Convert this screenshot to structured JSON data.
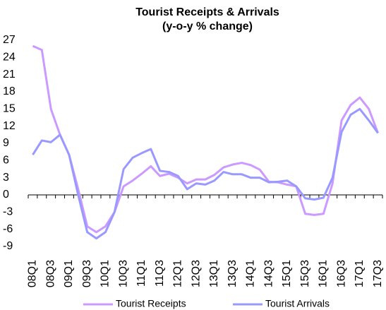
{
  "chart_data": {
    "type": "line",
    "title": "Tourist Receipts & Arrivals",
    "subtitle": "(y-o-y % change)",
    "categories": [
      "08Q1",
      null,
      "08Q3",
      null,
      "09Q1",
      null,
      "09Q3",
      null,
      "10Q1",
      null,
      "10Q3",
      null,
      "11Q1",
      null,
      "11Q3",
      null,
      "12Q1",
      null,
      "12Q3",
      null,
      "13Q1",
      null,
      "13Q3",
      null,
      "14Q1",
      null,
      "14Q3",
      null,
      "15Q1",
      null,
      "15Q3",
      null,
      "16Q1",
      null,
      "16Q3",
      null,
      "17Q1",
      null,
      "17Q3"
    ],
    "series": [
      {
        "name": "Tourist Receipts",
        "color": "#cc99ff",
        "values": [
          26,
          25.3,
          15,
          10.5,
          7,
          1,
          -5.5,
          -6.5,
          -5.5,
          -3,
          1.5,
          2.5,
          3.7,
          5,
          3.3,
          3.7,
          3,
          2,
          2.7,
          2.7,
          3.5,
          4.8,
          5.3,
          5.6,
          5.2,
          4.4,
          2.3,
          2.2,
          1.8,
          1.5,
          -3.3,
          -3.5,
          -3.3,
          2,
          13,
          15.7,
          17,
          15,
          10.8
        ]
      },
      {
        "name": "Tourist Arrivals",
        "color": "#9999ff",
        "values": [
          7,
          9.5,
          9.2,
          10.5,
          7,
          0,
          -6.5,
          -7.6,
          -6.5,
          -3,
          4.5,
          6.5,
          7.3,
          8,
          4.2,
          4,
          3.3,
          1,
          2,
          1.8,
          2.5,
          4,
          3.6,
          3.6,
          3,
          3,
          2.2,
          2.3,
          2.5,
          1.5,
          -0.6,
          -0.8,
          -0.5,
          3,
          11,
          14,
          15,
          13,
          10.8
        ]
      }
    ],
    "ylim": [
      -9,
      27
    ],
    "yticks": [
      -9,
      -6,
      -3,
      0,
      3,
      6,
      9,
      12,
      15,
      18,
      21,
      24,
      27
    ],
    "legend": "bottom"
  }
}
